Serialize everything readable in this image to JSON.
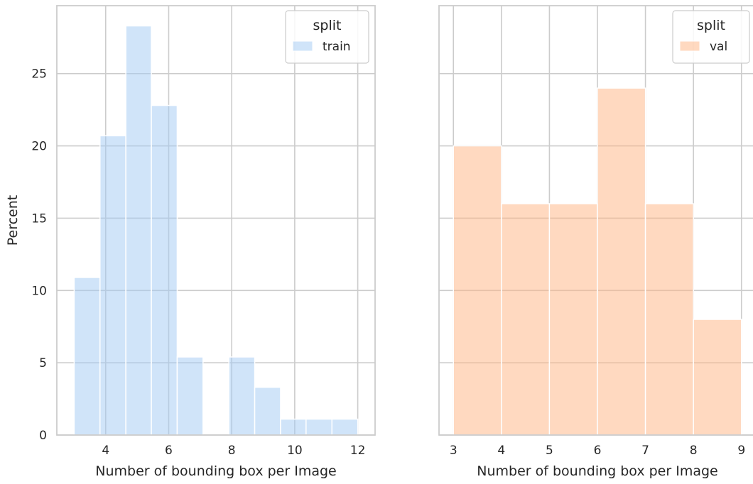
{
  "chart_data": [
    {
      "type": "bar",
      "subtype": "histogram",
      "xlabel": "Number of bounding box per Image",
      "ylabel": "Percent",
      "xlim": [
        2.45,
        12.55
      ],
      "ylim": [
        0,
        29.7
      ],
      "xticks": [
        4,
        6,
        8,
        10,
        12
      ],
      "yticks": [
        0,
        5,
        10,
        15,
        20,
        25
      ],
      "grid": true,
      "color": "#a1c9f4",
      "legend": {
        "title": "split",
        "placement": "top-right",
        "entries": [
          "train"
        ]
      },
      "bins": [
        {
          "x0": 3.0,
          "x1": 3.82,
          "value": 10.9
        },
        {
          "x0": 3.82,
          "x1": 4.64,
          "value": 20.7
        },
        {
          "x0": 4.64,
          "x1": 5.45,
          "value": 28.3
        },
        {
          "x0": 5.45,
          "x1": 6.27,
          "value": 22.8
        },
        {
          "x0": 6.27,
          "x1": 7.09,
          "value": 5.4
        },
        {
          "x0": 7.09,
          "x1": 7.91,
          "value": 0
        },
        {
          "x0": 7.91,
          "x1": 8.73,
          "value": 5.4
        },
        {
          "x0": 8.73,
          "x1": 9.55,
          "value": 3.3
        },
        {
          "x0": 9.55,
          "x1": 10.36,
          "value": 1.1
        },
        {
          "x0": 10.36,
          "x1": 11.18,
          "value": 1.1
        },
        {
          "x0": 11.18,
          "x1": 12.0,
          "value": 1.1
        }
      ]
    },
    {
      "type": "bar",
      "subtype": "histogram",
      "xlabel": "Number of bounding box per Image",
      "ylabel": "",
      "xlim": [
        2.7,
        9.3
      ],
      "ylim": [
        0,
        29.7
      ],
      "xticks": [
        3,
        4,
        5,
        6,
        7,
        8,
        9
      ],
      "yticks": [
        0,
        5,
        10,
        15,
        20,
        25
      ],
      "show_ytick_labels": false,
      "grid": true,
      "color": "#ffb482",
      "legend": {
        "title": "split",
        "placement": "top-right",
        "entries": [
          "val"
        ]
      },
      "bins": [
        {
          "x0": 3,
          "x1": 4,
          "value": 20
        },
        {
          "x0": 4,
          "x1": 5,
          "value": 16
        },
        {
          "x0": 5,
          "x1": 6,
          "value": 16
        },
        {
          "x0": 6,
          "x1": 7,
          "value": 24
        },
        {
          "x0": 7,
          "x1": 8,
          "value": 16
        },
        {
          "x0": 8,
          "x1": 9,
          "value": 8
        }
      ]
    }
  ]
}
